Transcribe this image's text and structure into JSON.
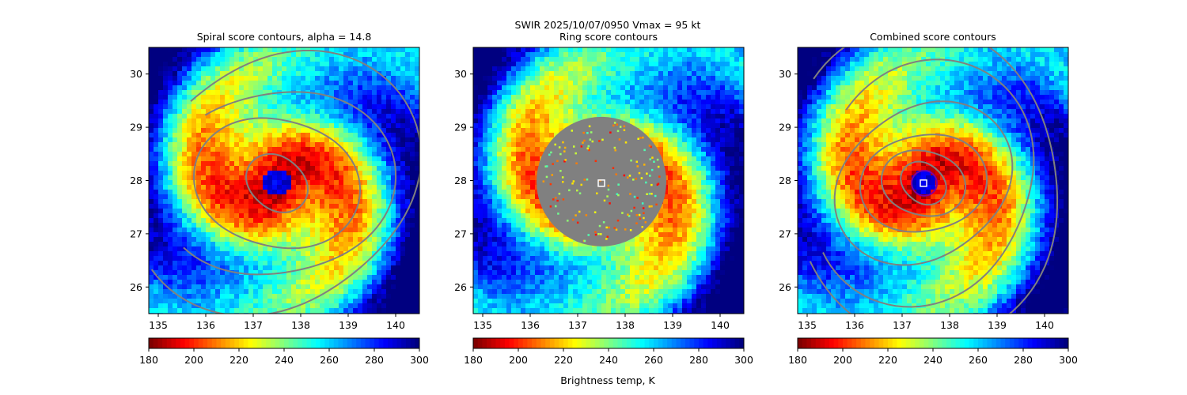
{
  "figure": {
    "suptitle": "SWIR  2025/10/07/0950    Vmax = 95 kt",
    "colorbar_label": "Brightness temp, K"
  },
  "colormap": {
    "name": "jet_r",
    "stops": [
      "#800000",
      "#ff0000",
      "#ff8000",
      "#ffff00",
      "#80ff80",
      "#00ffff",
      "#0080ff",
      "#0000ff",
      "#000080"
    ]
  },
  "chart_data": [
    {
      "type": "heatmap",
      "title": "Spiral score contours, alpha = 14.8",
      "xlabel": "",
      "ylabel": "",
      "xlim": [
        134.8,
        140.5
      ],
      "ylim": [
        25.5,
        30.5
      ],
      "xticks": [
        135,
        136,
        137,
        138,
        139,
        140
      ],
      "yticks": [
        26,
        27,
        28,
        29,
        30
      ],
      "center": [
        137.5,
        27.95
      ],
      "eye_radius_deg": 0.28,
      "contour_color": "#808080",
      "ring_mask": false,
      "marker": false,
      "colorbar": {
        "ticks": [
          180,
          200,
          220,
          240,
          260,
          280,
          300
        ],
        "range": [
          180,
          300
        ]
      }
    },
    {
      "type": "heatmap",
      "title": "Ring score contours",
      "xlabel": "",
      "ylabel": "",
      "xlim": [
        134.8,
        140.5
      ],
      "ylim": [
        25.5,
        30.5
      ],
      "xticks": [
        135,
        136,
        137,
        138,
        139,
        140
      ],
      "yticks": [
        26,
        27,
        28,
        29,
        30
      ],
      "center": [
        137.5,
        27.95
      ],
      "eye_radius_deg": 0.0,
      "ring_mask": true,
      "mask_color": "#808080",
      "marker": true,
      "colorbar": {
        "ticks": [
          180,
          200,
          220,
          240,
          260,
          280,
          300
        ],
        "range": [
          180,
          300
        ]
      }
    },
    {
      "type": "heatmap",
      "title": "Combined score contours",
      "xlabel": "",
      "ylabel": "",
      "xlim": [
        134.8,
        140.5
      ],
      "ylim": [
        25.5,
        30.5
      ],
      "xticks": [
        135,
        136,
        137,
        138,
        139,
        140
      ],
      "yticks": [
        26,
        27,
        28,
        29,
        30
      ],
      "center": [
        137.45,
        27.95
      ],
      "eye_radius_deg": 0.26,
      "contour_color": "#808080",
      "ring_mask": false,
      "marker": true,
      "eye_circle_color": "#8000a0",
      "colorbar": {
        "ticks": [
          180,
          200,
          220,
          240,
          260,
          280,
          300
        ],
        "range": [
          180,
          300
        ]
      }
    }
  ]
}
